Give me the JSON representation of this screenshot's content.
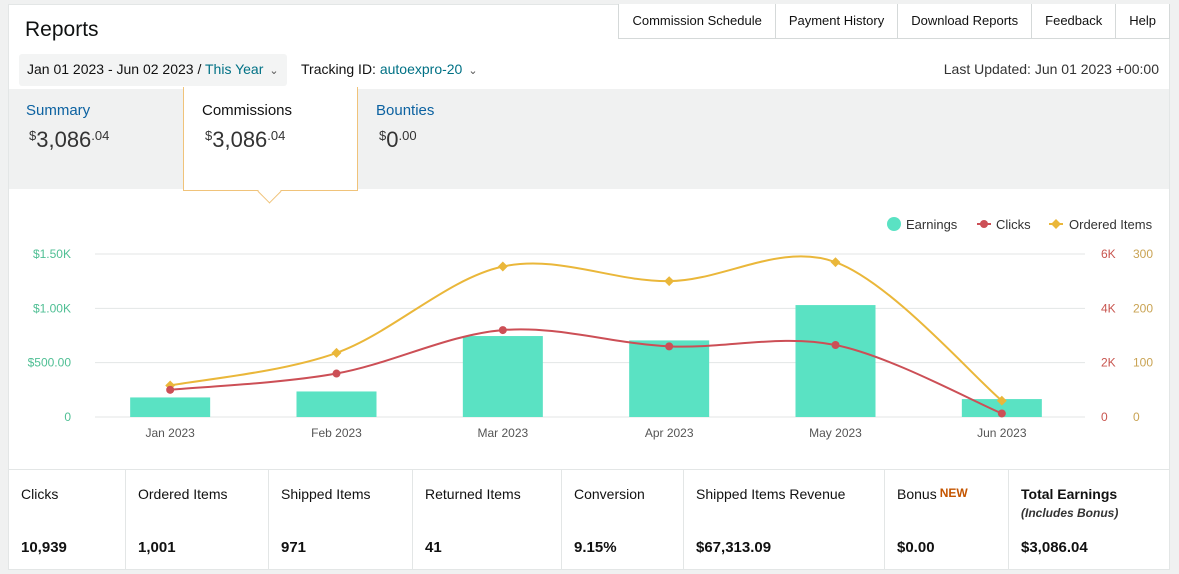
{
  "header": {
    "title": "Reports",
    "nav": [
      "Commission Schedule",
      "Payment History",
      "Download Reports",
      "Feedback",
      "Help"
    ]
  },
  "filters": {
    "date_range": "Jan 01 2023 - Jun 02 2023",
    "date_sep": " / ",
    "date_preset": "This Year",
    "tracking_label": "Tracking ID: ",
    "tracking_id": "autoexpro-20",
    "last_updated": "Last Updated: Jun 01 2023 +00:00"
  },
  "tabs": [
    {
      "label": "Summary",
      "currency": "$",
      "whole": "3,086",
      "cents": ".04"
    },
    {
      "label": "Commissions",
      "currency": "$",
      "whole": "3,086",
      "cents": ".04"
    },
    {
      "label": "Bounties",
      "currency": "$",
      "whole": "0",
      "cents": ".00"
    }
  ],
  "chart_data": {
    "type": "bar",
    "categories": [
      "Jan 2023",
      "Feb 2023",
      "Mar 2023",
      "Apr 2023",
      "May 2023",
      "Jun 2023"
    ],
    "series": [
      {
        "name": "Earnings",
        "type": "bar",
        "axis": "left",
        "values": [
          180,
          235,
          745,
          705,
          1030,
          165
        ]
      },
      {
        "name": "Clicks",
        "type": "line",
        "axis": "right1",
        "values": [
          1000,
          1600,
          3200,
          2600,
          2650,
          130
        ]
      },
      {
        "name": "Ordered Items",
        "type": "line",
        "axis": "right2",
        "values": [
          58,
          118,
          277,
          250,
          285,
          30
        ]
      }
    ],
    "axes": {
      "left": {
        "min": 0,
        "max": 1500,
        "ticks": [
          "0",
          "$500.00",
          "$1.00K",
          "$1.50K"
        ]
      },
      "right1": {
        "min": 0,
        "max": 6000,
        "ticks": [
          "0",
          "2K",
          "4K",
          "6K"
        ]
      },
      "right2": {
        "min": 0,
        "max": 300,
        "ticks": [
          "0",
          "100",
          "200",
          "300"
        ]
      }
    },
    "legend_position": "top-right",
    "colors": {
      "earnings": "#5ae2c3",
      "clicks": "#cc4f56",
      "ordered": "#eab73a",
      "left_axis": "#4fbf94",
      "right1_axis": "#c8554f",
      "right2_axis": "#c9a353",
      "grid": "#e3e6e6"
    }
  },
  "stats": [
    {
      "label": "Clicks",
      "value": "10,939"
    },
    {
      "label": "Ordered Items",
      "value": "1,001"
    },
    {
      "label": "Shipped Items",
      "value": "971"
    },
    {
      "label": "Returned Items",
      "value": "41"
    },
    {
      "label": "Conversion",
      "value": "9.15%"
    },
    {
      "label": "Shipped Items Revenue",
      "value": "$67,313.09"
    },
    {
      "label": "Bonus",
      "badge": "NEW",
      "value": "$0.00"
    },
    {
      "label": "Total Earnings",
      "sub": "(Includes Bonus)",
      "value": "$3,086.04"
    }
  ]
}
